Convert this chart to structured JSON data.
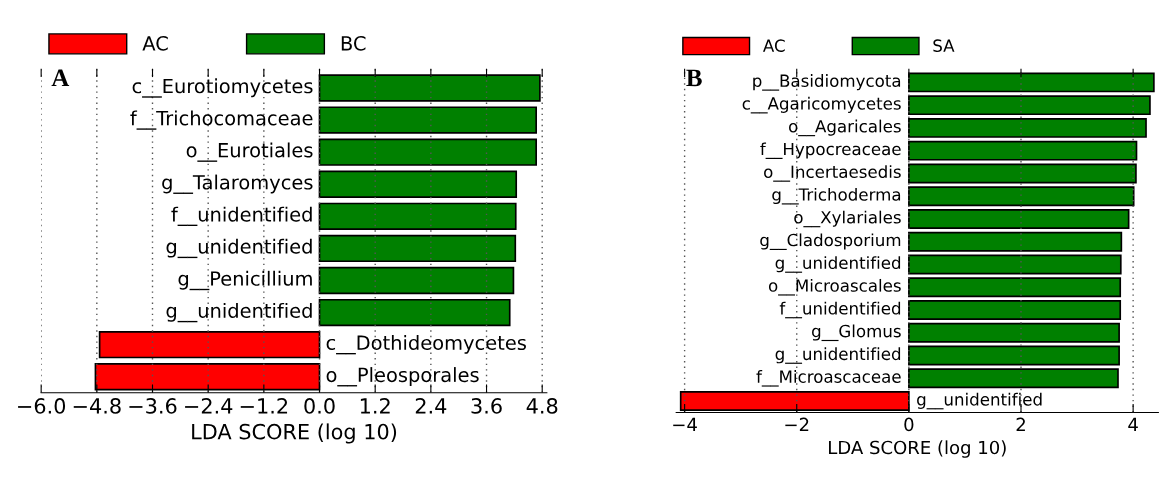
{
  "chart_data": [
    {
      "type": "bar",
      "orientation": "horizontal",
      "xlabel": "LDA SCORE (log 10)",
      "annotations": [
        "A"
      ],
      "categories": [
        "c__Eurotiomycetes",
        "f__Trichocomaceae",
        "o__Eurotiales",
        "g__Talaromyces",
        "f__unidentified",
        "g__unidentified",
        "g__Penicillium",
        "g__unidentified",
        "c__Dothideomycetes",
        "o__Pleosporales"
      ],
      "series": [
        {
          "name": "AC",
          "color": "#ff0000",
          "values": [
            null,
            null,
            null,
            null,
            null,
            null,
            null,
            null,
            -4.74,
            -4.83
          ]
        },
        {
          "name": "BC",
          "color": "#008000",
          "values": [
            4.75,
            4.67,
            4.67,
            4.24,
            4.23,
            4.22,
            4.18,
            4.1,
            null,
            null
          ]
        }
      ],
      "xlim": [
        -6.0,
        4.9
      ],
      "xticks": [
        {
          "value": -6.0,
          "label": "−6.0"
        },
        {
          "value": -4.8,
          "label": "−4.8"
        },
        {
          "value": -3.6,
          "label": "−3.6"
        },
        {
          "value": -2.4,
          "label": "−2.4"
        },
        {
          "value": -1.2,
          "label": "−1.2"
        },
        {
          "value": 0,
          "label": "0.0"
        },
        1.2,
        2.4,
        3.6,
        4.8
      ],
      "grid": "x",
      "legend": "top left",
      "tick_labels": "x"
    },
    {
      "type": "bar",
      "orientation": "horizontal",
      "xlabel": "LDA SCORE (log 10)",
      "annotations": [
        "B"
      ],
      "categories": [
        "p__Basidiomycota",
        "c__Agaricomycetes",
        "o__Agaricales",
        "f__Hypocreaceae",
        "o__Incertaesedis",
        "g__Trichoderma",
        "o__Xylariales",
        "g__Cladosporium",
        "g__unidentified",
        "o__Microascales",
        "f__unidentified",
        "g__Glomus",
        "g__unidentified",
        "f__Microascaceae",
        "g__unidentified"
      ],
      "series": [
        {
          "name": "AC",
          "color": "#ff0000",
          "values": [
            null,
            null,
            null,
            null,
            null,
            null,
            null,
            null,
            null,
            null,
            null,
            null,
            null,
            null,
            -4.07
          ]
        },
        {
          "name": "SA",
          "color": "#008000",
          "values": [
            4.37,
            4.3,
            4.23,
            4.06,
            4.05,
            4.01,
            3.92,
            3.79,
            3.78,
            3.77,
            3.77,
            3.75,
            3.75,
            3.73,
            null
          ]
        }
      ],
      "xlim": [
        -4.15,
        4.45
      ],
      "xticks": [
        {
          "value": -4,
          "label": "−4"
        },
        {
          "value": -2,
          "label": "−2"
        },
        0,
        2,
        4
      ],
      "grid": "x",
      "legend": "top left",
      "tick_labels": "x"
    }
  ]
}
